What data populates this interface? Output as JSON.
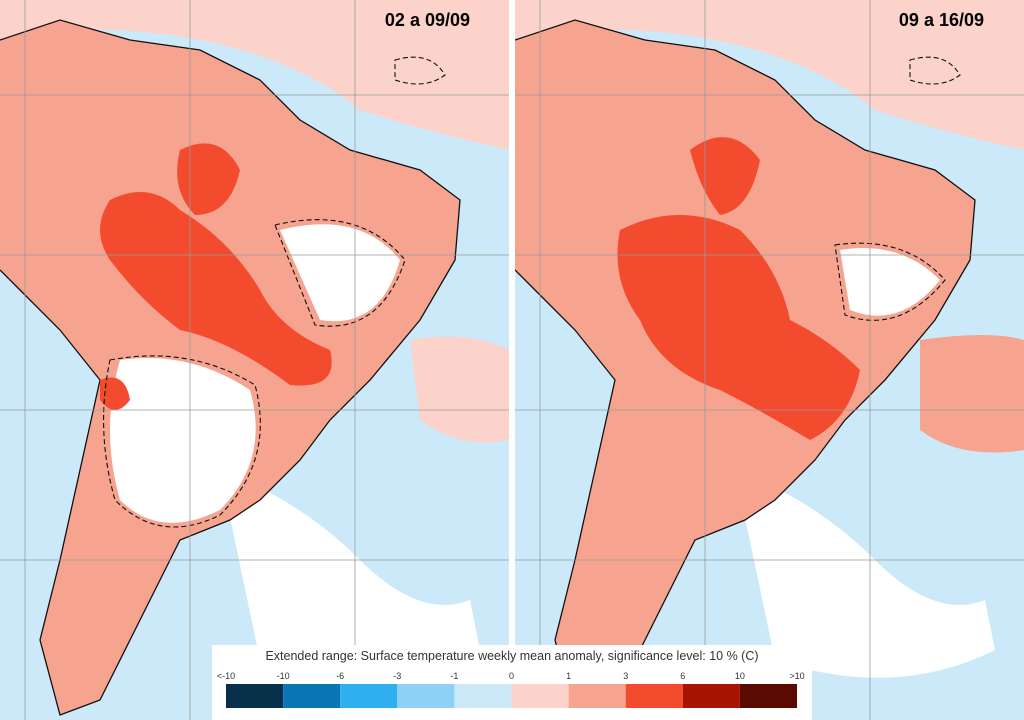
{
  "panels": [
    {
      "title": "02 a 09/09"
    },
    {
      "title": "09 a 16/09"
    }
  ],
  "legend": {
    "title": "Extended range: Surface temperature weekly mean anomaly, significance level: 10 % (C)",
    "labels": [
      "<-10",
      "-10",
      "-6",
      "-3",
      "-1",
      "0",
      "1",
      "3",
      "6",
      "10",
      ">10"
    ],
    "colors": [
      "#08304a",
      "#0a77b5",
      "#2eb0f0",
      "#8fd0f5",
      "#cbe9f8",
      "#fcd3cb",
      "#f6a38f",
      "#f24b2e",
      "#a81400",
      "#5a0a00"
    ]
  }
}
